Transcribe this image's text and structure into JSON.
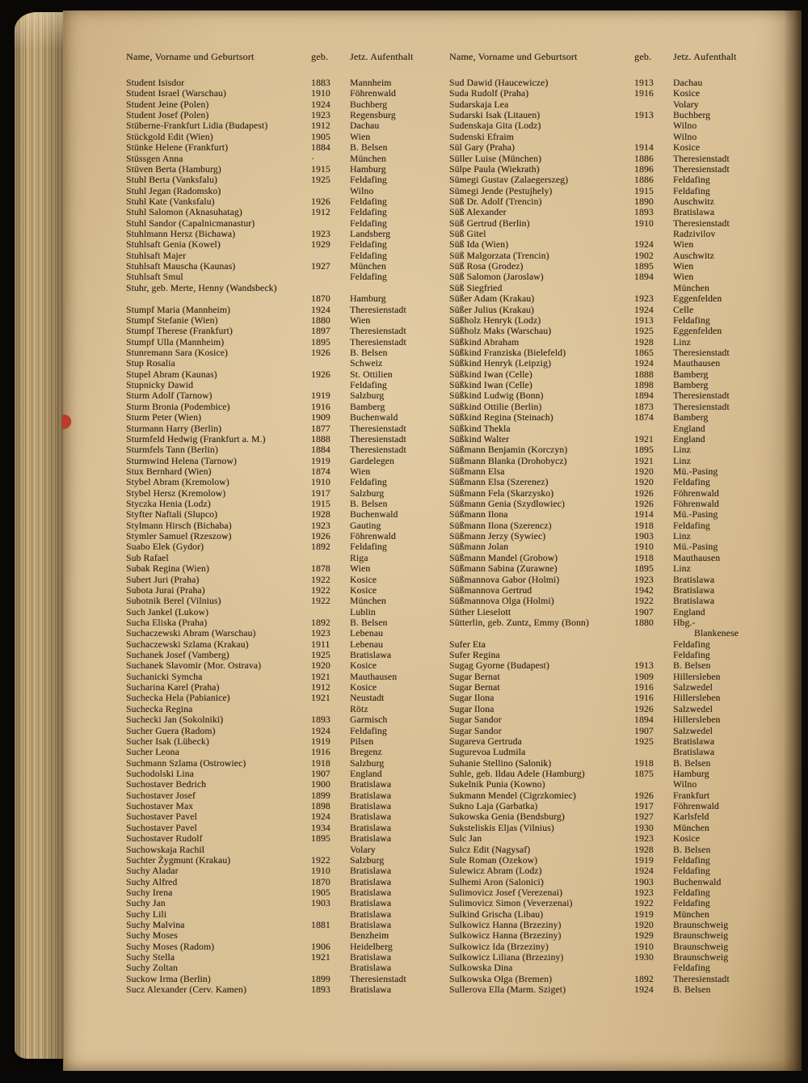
{
  "header": {
    "name": "Name, Vorname und Geburtsort",
    "geb": "geb.",
    "ort": "Jetz. Aufenthalt"
  },
  "colors": {
    "paper": "#d8bf93",
    "background": "#0b0907",
    "ink": "#332a1b",
    "red_mark": "#c0392b"
  },
  "columns": [
    {
      "entries": [
        [
          "Student Isisdor",
          "1883",
          "Mannheim"
        ],
        [
          "Student Israel (Warschau)",
          "1910",
          "Föhrenwald"
        ],
        [
          "Student Jeine (Polen)",
          "1924",
          "Buchberg"
        ],
        [
          "Student Josef (Polen)",
          "1923",
          "Regensburg"
        ],
        [
          "Stüberne-Frankfurt Lidia (Budapest)",
          "1912",
          "Dachau"
        ],
        [
          "Stückgold Edit (Wien)",
          "1905",
          "Wien"
        ],
        [
          "Stünke Helene (Frankfurt)",
          "1884",
          "B. Belsen"
        ],
        [
          "Stüssgen Anna",
          "·",
          "München"
        ],
        [
          "Stüven Berta (Hamburg)",
          "1915",
          "Hamburg"
        ],
        [
          "Stuhl Berta (Vanksfalu)",
          "1925",
          "Feldafing"
        ],
        [
          "Stuhl Jegan (Radomsko)",
          "",
          "Wilno"
        ],
        [
          "Stuhl Kate (Vanksfalu)",
          "1926",
          "Feldafing"
        ],
        [
          "Stuhl Salomon (Aknasuhatag)",
          "1912",
          "Feldafing"
        ],
        [
          "Stuhl Sandor (Capalnicmanastur)",
          "",
          "Feldafing"
        ],
        [
          "Stuhlmann Hersz (Bichawa)",
          "1923",
          "Landsberg"
        ],
        [
          "Stuhlsaft Genia (Kowel)",
          "1929",
          "Feldafing"
        ],
        [
          "Stuhlsaft Majer",
          "",
          "Feldafing"
        ],
        [
          "Stuhlsaft Mauscha (Kaunas)",
          "1927",
          "München"
        ],
        [
          "Stuhlsaft Smul",
          "",
          "Feldafing"
        ],
        [
          "Stuhr, geb. Merte, Henny (Wandsbeck)",
          "",
          ""
        ],
        [
          "",
          "1870",
          "Hamburg"
        ],
        [
          "Stumpf Maria (Mannheim)",
          "1924",
          "Theresienstadt"
        ],
        [
          "Stumpf Stefanie (Wien)",
          "1880",
          "Wien"
        ],
        [
          "Stumpf Therese (Frankfurt)",
          "1897",
          "Theresienstadt"
        ],
        [
          "Stumpf Ulla (Mannheim)",
          "1895",
          "Theresienstadt"
        ],
        [
          "Stunremann Sara (Kosice)",
          "1926",
          "B. Belsen"
        ],
        [
          "Stup Rosalia",
          "",
          "Schweiz"
        ],
        [
          "Stupel Abram (Kaunas)",
          "1926",
          "St. Ottilien"
        ],
        [
          "Stupnicky Dawid",
          "",
          "Feldafing"
        ],
        [
          "Sturm Adolf (Tarnow)",
          "1919",
          "Salzburg"
        ],
        [
          "Sturm Bronia (Podembice)",
          "1916",
          "Bamberg"
        ],
        [
          "Sturm Peter (Wien)",
          "1909",
          "Buchenwald"
        ],
        [
          "Sturmann Harry (Berlin)",
          "1877",
          "Theresienstadt"
        ],
        [
          "Sturmfeld Hedwig (Frankfurt a. M.)",
          "1888",
          "Theresienstadt"
        ],
        [
          "Sturmfels Tann (Berlin)",
          "1884",
          "Theresienstadt"
        ],
        [
          "Sturmwind Helena (Tarnow)",
          "1919",
          "Gardelegen"
        ],
        [
          "Stux Bernhard (Wien)",
          "1874",
          "Wien"
        ],
        [
          "Stybel Abram (Kremolow)",
          "1910",
          "Feldafing"
        ],
        [
          "Stybel Hersz (Kremolow)",
          "1917",
          "Salzburg"
        ],
        [
          "Styczka Henia (Lodz)",
          "1915",
          "B. Belsen"
        ],
        [
          "Styfter Naftali (Slupco)",
          "1928",
          "Buchenwald"
        ],
        [
          "Stylmann Hirsch (Bichaba)",
          "1923",
          "Gauting"
        ],
        [
          "Stymler Samuel (Rzeszow)",
          "1926",
          "Föhrenwald"
        ],
        [
          "Suabo Elek (Gydor)",
          "1892",
          "Feldafing"
        ],
        [
          "Sub Rafael",
          "",
          "Riga"
        ],
        [
          "Subak Regina (Wien)",
          "1878",
          "Wien"
        ],
        [
          "Subert Juri (Praha)",
          "1922",
          "Kosice"
        ],
        [
          "Subota Jurai (Praha)",
          "1922",
          "Kosice"
        ],
        [
          "Subotnik Berel (Vilnius)",
          "1922",
          "München"
        ],
        [
          "Such Jankel (Lukow)",
          "",
          "Lublin"
        ],
        [
          "Sucha Eliska (Praha)",
          "1892",
          "B. Belsen"
        ],
        [
          "Suchaczewski Abram (Warschau)",
          "1923",
          "Lebenau"
        ],
        [
          "Suchaczewski Szlama (Krakau)",
          "1911",
          "Lebenau"
        ],
        [
          "Suchanek Josef (Vamberg)",
          "1925",
          "Bratislawa"
        ],
        [
          "Suchanek Slavomir (Mor. Ostrava)",
          "1920",
          "Kosice"
        ],
        [
          "Suchanicki Symcha",
          "1921",
          "Mauthausen"
        ],
        [
          "Sucharina Karel (Praha)",
          "1912",
          "Kosice"
        ],
        [
          "Suchecka Hela (Pabianice)",
          "1921",
          "Neustadt"
        ],
        [
          "Suchecka Regina",
          "",
          "Rötz"
        ],
        [
          "Suchecki Jan (Sokolniki)",
          "1893",
          "Garmisch"
        ],
        [
          "Sucher Guera (Radom)",
          "1924",
          "Feldafing"
        ],
        [
          "Sucher Isak (Lübeck)",
          "1919",
          "Pilsen"
        ],
        [
          "Sucher Leona",
          "1916",
          "Bregenz"
        ],
        [
          "Suchmann Szlama (Ostrowiec)",
          "1918",
          "Salzburg"
        ],
        [
          "Suchodolski Lina",
          "1907",
          "England"
        ],
        [
          "Suchostaver Bedrich",
          "1900",
          "Bratislawa"
        ],
        [
          "Suchostaver Josef",
          "1899",
          "Bratislawa"
        ],
        [
          "Suchostaver Max",
          "1898",
          "Bratislawa"
        ],
        [
          "Suchostaver Pavel",
          "1924",
          "Bratislawa"
        ],
        [
          "Suchostaver Pavel",
          "1934",
          "Bratislawa"
        ],
        [
          "Suchostaver Rudolf",
          "1895",
          "Bratislawa"
        ],
        [
          "Suchowskaja Rachil",
          "",
          "Volary"
        ],
        [
          "Suchter Żygmunt (Krakau)",
          "1922",
          "Salzburg"
        ],
        [
          "Suchy Aladar",
          "1910",
          "Bratislawa"
        ],
        [
          "Suchy Alfred",
          "1870",
          "Bratislawa"
        ],
        [
          "Suchy Irena",
          "1905",
          "Bratislawa"
        ],
        [
          "Suchy Jan",
          "1903",
          "Bratislawa"
        ],
        [
          "Suchy Lili",
          "",
          "Bratislawa"
        ],
        [
          "Suchy Malvina",
          "1881",
          "Bratislawa"
        ],
        [
          "Suchy Moses",
          "",
          "Benzheim"
        ],
        [
          "Suchy Moses (Radom)",
          "1906",
          "Heidelberg"
        ],
        [
          "Suchy Stella",
          "1921",
          "Bratislawa"
        ],
        [
          "Suchy Zoltan",
          "",
          "Bratislawa"
        ],
        [
          "Suckow Irma (Berlin)",
          "1899",
          "Theresienstadt"
        ],
        [
          "Sucz Alexander (Cerv. Kamen)",
          "1893",
          "Bratislawa"
        ]
      ]
    },
    {
      "entries": [
        [
          "Sud Dawid (Haucewicze)",
          "1913",
          "Dachau"
        ],
        [
          "Suda Rudolf (Praha)",
          "1916",
          "Kosice"
        ],
        [
          "Sudarskaja Lea",
          "",
          "Volary"
        ],
        [
          "Sudarski Isak (Litauen)",
          "1913",
          "Buchberg"
        ],
        [
          "Sudenskaja Gita (Lodz)",
          "",
          "Wilno"
        ],
        [
          "Sudenski Efraim",
          "",
          "Wilno"
        ],
        [
          "Sül Gary (Praha)",
          "1914",
          "Kosice"
        ],
        [
          "Süller Luise (München)",
          "1886",
          "Theresienstadt"
        ],
        [
          "Sülpe Paula (Wiekrath)",
          "1896",
          "Theresienstadt"
        ],
        [
          "Sümegi Gustav (Zalaegerszeg)",
          "1886",
          "Feldafing"
        ],
        [
          "Sümegi Jende (Pestujhely)",
          "1915",
          "Feldafing"
        ],
        [
          "Süß Dr. Adolf (Trencin)",
          "1890",
          "Auschwitz"
        ],
        [
          "Süß Alexander",
          "1893",
          "Bratislawa"
        ],
        [
          "Süß Gertrud (Berlin)",
          "1910",
          "Theresienstadt"
        ],
        [
          "Süß Gitel",
          "",
          "Radzivilov"
        ],
        [
          "Süß Ida (Wien)",
          "1924",
          "Wien"
        ],
        [
          "Süß Malgorzata (Trencin)",
          "1902",
          "Auschwitz"
        ],
        [
          "Süß Rosa (Grodez)",
          "1895",
          "Wien"
        ],
        [
          "Süß Salomon (Jaroslaw)",
          "1894",
          "Wien"
        ],
        [
          "Süß Siegfried",
          "",
          "München"
        ],
        [
          "Süßer Adam (Krakau)",
          "1923",
          "Eggenfelden"
        ],
        [
          "Süßer Julius (Krakau)",
          "1924",
          "Celle"
        ],
        [
          "Süßholz Henryk (Lodz)",
          "1913",
          "Feldafing"
        ],
        [
          "Süßholz Maks (Warschau)",
          "1925",
          "Eggenfelden"
        ],
        [
          "Süßkind Abraham",
          "1928",
          "Linz"
        ],
        [
          "Süßkind Franziska (Bielefeld)",
          "1865",
          "Theresienstadt"
        ],
        [
          "Süßkind Henryk (Leipzig)",
          "1924",
          "Mauthausen"
        ],
        [
          "Süßkind Iwan (Celle)",
          "1888",
          "Bamberg"
        ],
        [
          "Süßkind Iwan (Celle)",
          "1898",
          "Bamberg"
        ],
        [
          "Süßkind Ludwig (Bonn)",
          "1894",
          "Theresienstadt"
        ],
        [
          "Süßkind Ottilie (Berlin)",
          "1873",
          "Theresienstadt"
        ],
        [
          "Süßkind Regina (Steinach)",
          "1874",
          "Bamberg"
        ],
        [
          "Süßkind Thekla",
          "",
          "England"
        ],
        [
          "Süßkind Walter",
          "1921",
          "England"
        ],
        [
          "Süßmann Benjamin (Korczyn)",
          "1895",
          "Linz"
        ],
        [
          "Süßmann Blanka (Drohobycz)",
          "1921",
          "Linz"
        ],
        [
          "Süßmann Elsa",
          "1920",
          "Mü.-Pasing"
        ],
        [
          "Süßmann Elsa (Szerenez)",
          "1920",
          "Feldafing"
        ],
        [
          "Süßmann Fela (Skarzysko)",
          "1926",
          "Föhrenwald"
        ],
        [
          "Süßmann Genia (Szydlowiec)",
          "1926",
          "Föhrenwald"
        ],
        [
          "Süßmann Ilona",
          "1914",
          "Mü.-Pasing"
        ],
        [
          "Süßmann Ilona (Szerencz)",
          "1918",
          "Feldafing"
        ],
        [
          "Süßmann Jerzy (Sywiec)",
          "1903",
          "Linz"
        ],
        [
          "Süßmann Jolan",
          "1910",
          "Mü.-Pasing"
        ],
        [
          "Süßmann Mandel (Grobow)",
          "1918",
          "Mauthausen"
        ],
        [
          "Süßmann Sabina (Zurawne)",
          "1895",
          "Linz"
        ],
        [
          "Süßmannova Gabor (Holmi)",
          "1923",
          "Bratislawa"
        ],
        [
          "Süßmannova Gertrud",
          "1942",
          "Bratislawa"
        ],
        [
          "Süßmannova Olga (Holmi)",
          "1922",
          "Bratislawa"
        ],
        [
          "Süther Lieselott",
          "1907",
          "England"
        ],
        [
          "Sütterlin, geb. Zuntz, Emmy (Bonn)",
          "1880",
          "Hbg.-"
        ],
        [
          "",
          "",
          "Blankenese",
          true
        ],
        [
          "Sufer Eta",
          "",
          "Feldafing"
        ],
        [
          "Sufer Regina",
          "",
          "Feldafing"
        ],
        [
          "Sugag Gyorne (Budapest)",
          "1913",
          "B. Belsen"
        ],
        [
          "Sugar Bernat",
          "1909",
          "Hillersleben"
        ],
        [
          "Sugar Bernat",
          "1916",
          "Salzwedel"
        ],
        [
          "Sugar Ilona",
          "1916",
          "Hillersleben"
        ],
        [
          "Sugar Ilona",
          "1926",
          "Salzwedel"
        ],
        [
          "Sugar Sandor",
          "1894",
          "Hillersleben"
        ],
        [
          "Sugar Sandor",
          "1907",
          "Salzwedel"
        ],
        [
          "Sugareva Gertruda",
          "1925",
          "Bratislawa"
        ],
        [
          "Sugurevoa Ludmila",
          "",
          "Bratislawa"
        ],
        [
          "Suhanie Stellino (Salonik)",
          "1918",
          "B. Belsen"
        ],
        [
          "Suhle, geb. Ildau Adele (Hamburg)",
          "1875",
          "Hamburg"
        ],
        [
          "Sukelnik Punia (Kowno)",
          "",
          "Wilno"
        ],
        [
          "Sukmann Mendel (Cigrzkomiec)",
          "1926",
          "Frankfurt"
        ],
        [
          "Sukno Laja (Garbatka)",
          "1917",
          "Föhrenwald"
        ],
        [
          "Sukowska Genia (Bendsburg)",
          "1927",
          "Karlsfeld"
        ],
        [
          "Suksteliskis Eljas (Vilnius)",
          "1930",
          "München"
        ],
        [
          "Sulc Jan",
          "1923",
          "Kosice"
        ],
        [
          "Sulcz Edit (Nagysaf)",
          "1928",
          "B. Belsen"
        ],
        [
          "Sule Roman (Ozekow)",
          "1919",
          "Feldafing"
        ],
        [
          "Sulewicz Abram (Lodz)",
          "1924",
          "Feldafing"
        ],
        [
          "Sulhemi Aron (Salonici)",
          "1903",
          "Buchenwald"
        ],
        [
          "Sulimovicz Josef (Verezenai)",
          "1923",
          "Feldafing"
        ],
        [
          "Sulimovicz Simon (Veverzenai)",
          "1922",
          "Feldafing"
        ],
        [
          "Sulkind Grischa (Libau)",
          "1919",
          "München"
        ],
        [
          "Sulkowicz Hanna (Brzeziny)",
          "1920",
          "Braunschweig"
        ],
        [
          "Sulkowicz Hanna (Brzeziny)",
          "1929",
          "Braunschweig"
        ],
        [
          "Sulkowicz Ida (Brzeziny)",
          "1910",
          "Braunschweig"
        ],
        [
          "Sulkowicz Liliana (Brzeziny)",
          "1930",
          "Braunschweig"
        ],
        [
          "Sulkowska Dina",
          "",
          "Feldafing"
        ],
        [
          "Sulkowska Olga (Bremen)",
          "1892",
          "Theresienstadt"
        ],
        [
          "Sullerova Ella (Marm. Sziget)",
          "1924",
          "B. Belsen"
        ]
      ]
    }
  ]
}
